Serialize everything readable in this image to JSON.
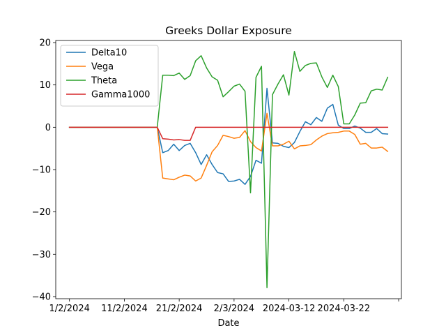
{
  "chart_data": {
    "type": "line",
    "title": "Greeks Dollar Exposure",
    "xlabel": "Date",
    "ylabel": "",
    "xlim": [
      -2.5,
      60.5
    ],
    "ylim": [
      -40.5,
      20.5
    ],
    "x": [
      0,
      1,
      2,
      3,
      4,
      5,
      6,
      7,
      8,
      9,
      10,
      11,
      12,
      13,
      14,
      15,
      16,
      17,
      18,
      19,
      20,
      21,
      22,
      23,
      24,
      25,
      26,
      27,
      28,
      29,
      30,
      31,
      32,
      33,
      34,
      35,
      36,
      37,
      38,
      39,
      40,
      41,
      42,
      43,
      44,
      45,
      46,
      47,
      48,
      49,
      50,
      51,
      52,
      53,
      54,
      55,
      56,
      57,
      58
    ],
    "x_ticks": [
      {
        "pos": 0,
        "label": "1/2/2024"
      },
      {
        "pos": 10,
        "label": "11/2/2024"
      },
      {
        "pos": 20,
        "label": "21/2/2024"
      },
      {
        "pos": 30,
        "label": "2/3/2024"
      },
      {
        "pos": 40,
        "label": "2024-03-12"
      },
      {
        "pos": 50,
        "label": "2024-03-22"
      },
      {
        "pos": 60,
        "label": ""
      }
    ],
    "y_ticks": [
      20,
      10,
      0,
      -10,
      -20,
      -30,
      -40
    ],
    "legend_position": "top-left",
    "series": [
      {
        "name": "Delta10",
        "color": "#1f77b4",
        "values": [
          0,
          0,
          0,
          0,
          0,
          0,
          0,
          0,
          0,
          0,
          0,
          0,
          0,
          0,
          0,
          0,
          0,
          -6,
          -5.5,
          -4,
          -5.5,
          -4.3,
          -3.8,
          -6,
          -8.8,
          -6.5,
          -8.8,
          -10.7,
          -11,
          -12.8,
          -12.7,
          -12.3,
          -13.5,
          -11.6,
          -7.8,
          -8.5,
          9.2,
          -3.7,
          -3.8,
          -4.5,
          -4.8,
          -3.6,
          -1,
          1.3,
          0.6,
          2.3,
          1.4,
          4.5,
          5.4,
          0.5,
          -0.3,
          -0.3,
          0.3,
          -0.2,
          -1.2,
          -1.2,
          -0.3,
          -1.5,
          -1.6
        ]
      },
      {
        "name": "Vega",
        "color": "#ff7f0e",
        "values": [
          0,
          0,
          0,
          0,
          0,
          0,
          0,
          0,
          0,
          0,
          0,
          0,
          0,
          0,
          0,
          0,
          0,
          -12,
          -12.2,
          -12.4,
          -11.8,
          -11.3,
          -11.5,
          -12.7,
          -12,
          -9,
          -5.8,
          -4.3,
          -1.9,
          -2.2,
          -2.6,
          -2.4,
          -0.8,
          -3.4,
          -4.8,
          -5.6,
          3.3,
          -4.4,
          -4.4,
          -4,
          -3.3,
          -5.1,
          -4.4,
          -4.3,
          -4.1,
          -3,
          -2.1,
          -1.5,
          -1.3,
          -1.2,
          -0.9,
          -0.9,
          -1.7,
          -4,
          -3.8,
          -4.9,
          -4.9,
          -4.7,
          -5.7
        ]
      },
      {
        "name": "Theta",
        "color": "#2ca02c",
        "values": [
          0,
          0,
          0,
          0,
          0,
          0,
          0,
          0,
          0,
          0,
          0,
          0,
          0,
          0,
          0,
          0,
          0,
          12.3,
          12.3,
          12.2,
          12.8,
          11.3,
          12.2,
          15.7,
          16.9,
          14,
          11.9,
          11.1,
          7.2,
          8.4,
          9.7,
          10.2,
          8.5,
          -15.5,
          11.8,
          14.4,
          -37.9,
          7.7,
          10.2,
          12.4,
          7.6,
          17.9,
          13.2,
          14.6,
          15.1,
          15.2,
          11.9,
          9.4,
          12.3,
          9.6,
          0.8,
          0.8,
          2.9,
          5.7,
          5.8,
          8.6,
          9,
          8.8,
          11.8
        ]
      },
      {
        "name": "Gamma1000",
        "color": "#d62728",
        "values": [
          0,
          0,
          0,
          0,
          0,
          0,
          0,
          0,
          0,
          0,
          0,
          0,
          0,
          0,
          0,
          0,
          0,
          -2.7,
          -2.8,
          -3,
          -2.9,
          -3.1,
          -3.1,
          0,
          0,
          0,
          0,
          0,
          0,
          0,
          0,
          0,
          0,
          0,
          0,
          0,
          0,
          0,
          0,
          0,
          0,
          0,
          0,
          0,
          0,
          0,
          0,
          0,
          0,
          0,
          0,
          0,
          0,
          0,
          0,
          0,
          0,
          0,
          0
        ]
      }
    ]
  }
}
